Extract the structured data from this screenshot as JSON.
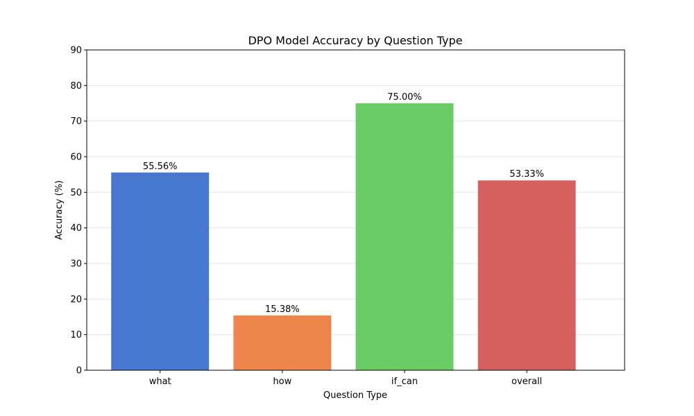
{
  "chart_data": {
    "type": "bar",
    "title": "DPO Model Accuracy by Question Type",
    "xlabel": "Question Type",
    "ylabel": "Accuracy (%)",
    "categories": [
      "what",
      "how",
      "if_can",
      "overall"
    ],
    "values": [
      55.56,
      15.38,
      75.0,
      53.33
    ],
    "value_labels": [
      "55.56%",
      "15.38%",
      "75.00%",
      "53.33%"
    ],
    "colors": [
      "#4878cf",
      "#ee854a",
      "#6acc64",
      "#d65f5f"
    ],
    "ylim": [
      0,
      90
    ],
    "yticks": [
      0,
      10,
      20,
      30,
      40,
      50,
      60,
      70,
      80,
      90
    ],
    "grid": "horizontal",
    "legend": "none"
  }
}
